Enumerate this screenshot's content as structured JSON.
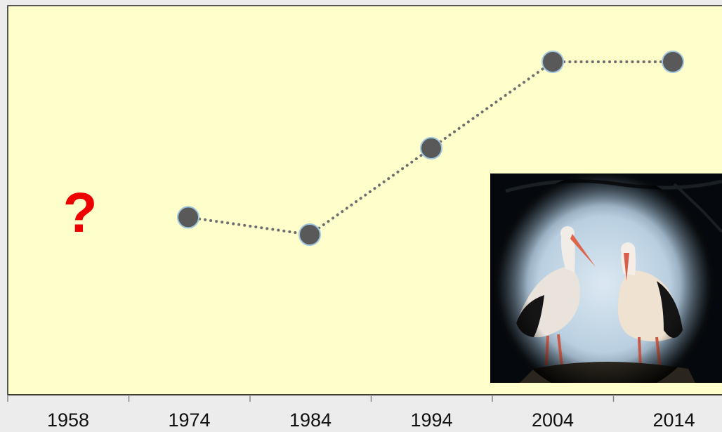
{
  "chart_data": {
    "type": "line",
    "title": "",
    "xlabel": "",
    "ylabel": "",
    "categories": [
      "1958",
      "1974",
      "1984",
      "1994",
      "2004",
      "2014"
    ],
    "series": [
      {
        "values": [
          null,
          0.1,
          0.0,
          0.5,
          1.0,
          1.0
        ],
        "color": "#595959",
        "line_style": "dotted"
      }
    ],
    "unknown_marker": {
      "category": "1958",
      "text": "?",
      "color": "#ee0000"
    },
    "plot_background": "#ffffcc",
    "page_background": "#ececec",
    "grid": false,
    "legend": "none",
    "y_axis_visible": false,
    "photo": {
      "subject": "two white storks",
      "position": "bottom-right"
    }
  }
}
